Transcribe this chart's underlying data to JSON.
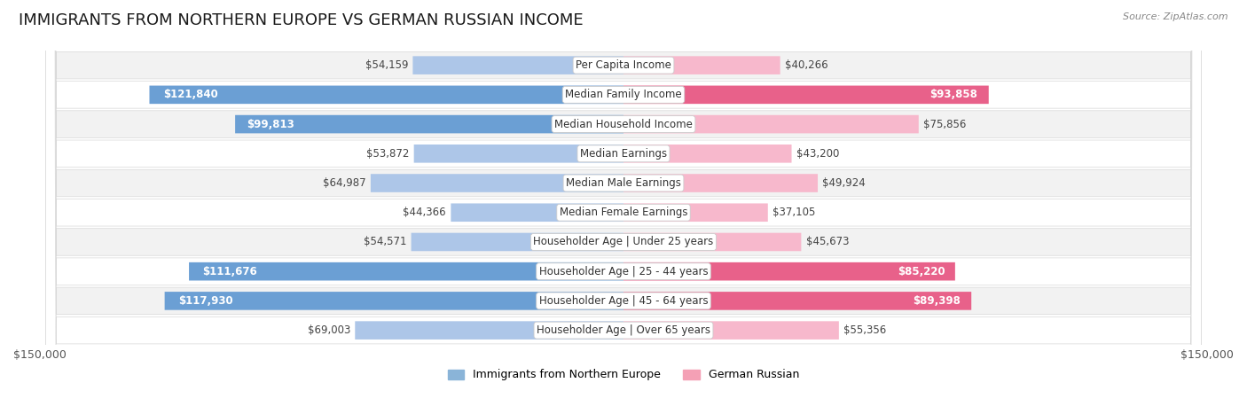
{
  "title": "IMMIGRANTS FROM NORTHERN EUROPE VS GERMAN RUSSIAN INCOME",
  "source": "Source: ZipAtlas.com",
  "categories": [
    "Per Capita Income",
    "Median Family Income",
    "Median Household Income",
    "Median Earnings",
    "Median Male Earnings",
    "Median Female Earnings",
    "Householder Age | Under 25 years",
    "Householder Age | 25 - 44 years",
    "Householder Age | 45 - 64 years",
    "Householder Age | Over 65 years"
  ],
  "left_values": [
    54159,
    121840,
    99813,
    53872,
    64987,
    44366,
    54571,
    111676,
    117930,
    69003
  ],
  "right_values": [
    40266,
    93858,
    75856,
    43200,
    49924,
    37105,
    45673,
    85220,
    89398,
    55356
  ],
  "left_color_light": "#adc6e8",
  "left_color_dark": "#6b9fd4",
  "right_color_light": "#f7b8cc",
  "right_color_dark": "#e8618a",
  "left_legend_color": "#8ab4d8",
  "right_legend_color": "#f4a0b5",
  "left_legend_label": "Immigrants from Northern Europe",
  "right_legend_label": "German Russian",
  "max_value": 150000,
  "background_color": "#ffffff",
  "row_bg_light": "#f0f0f0",
  "row_bg_dark": "#e0e0e0",
  "center_label_bg": "#ffffff",
  "title_fontsize": 13,
  "source_fontsize": 8,
  "bar_label_fontsize": 8.5,
  "category_fontsize": 8.5,
  "axis_label_fontsize": 9,
  "legend_fontsize": 9,
  "inside_threshold": 85000
}
